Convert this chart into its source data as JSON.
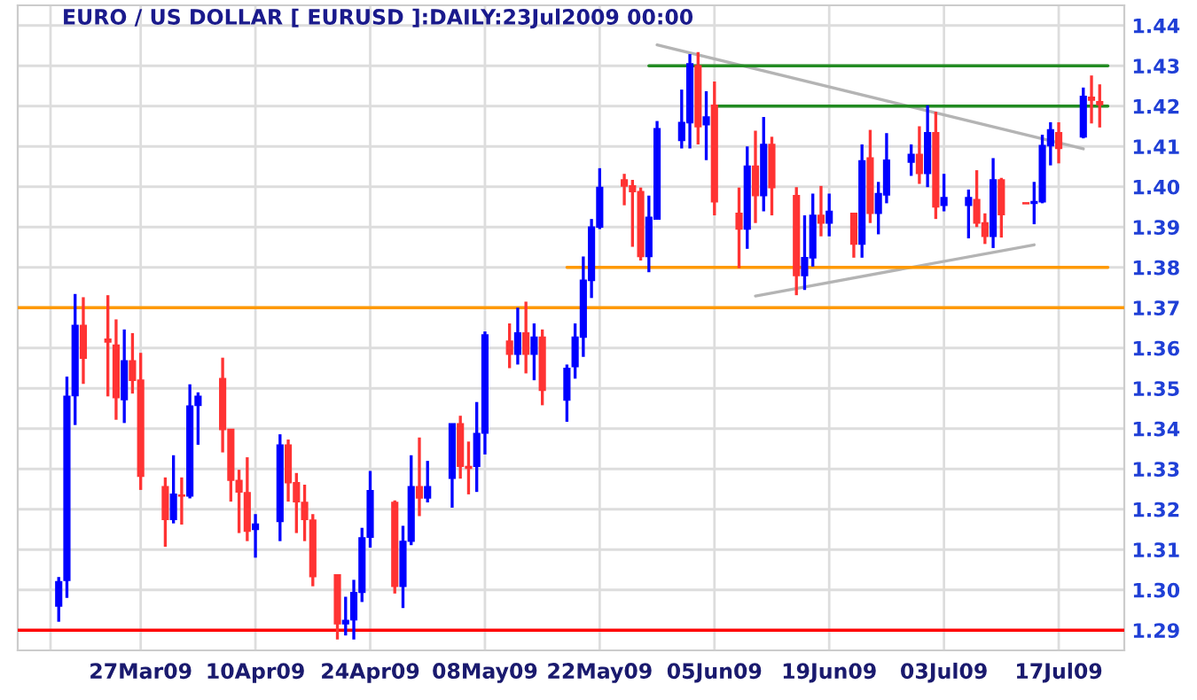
{
  "chart_data": {
    "type": "candlestick",
    "title": "EURO / US DOLLAR [ EURUSD ]:DAILY:23Jul2009 00:00",
    "x": [
      "2009-03-17",
      "2009-03-18",
      "2009-03-19",
      "2009-03-20",
      "2009-03-23",
      "2009-03-24",
      "2009-03-25",
      "2009-03-26",
      "2009-03-27",
      "2009-03-30",
      "2009-03-31",
      "2009-04-01",
      "2009-04-02",
      "2009-04-03",
      "2009-04-06",
      "2009-04-07",
      "2009-04-08",
      "2009-04-09",
      "2009-04-10",
      "2009-04-13",
      "2009-04-14",
      "2009-04-15",
      "2009-04-16",
      "2009-04-17",
      "2009-04-20",
      "2009-04-21",
      "2009-04-22",
      "2009-04-23",
      "2009-04-24",
      "2009-04-27",
      "2009-04-28",
      "2009-04-29",
      "2009-04-30",
      "2009-05-01",
      "2009-05-04",
      "2009-05-05",
      "2009-05-06",
      "2009-05-07",
      "2009-05-08",
      "2009-05-11",
      "2009-05-12",
      "2009-05-13",
      "2009-05-14",
      "2009-05-15",
      "2009-05-18",
      "2009-05-19",
      "2009-05-20",
      "2009-05-21",
      "2009-05-22",
      "2009-05-25",
      "2009-05-26",
      "2009-05-27",
      "2009-05-28",
      "2009-05-29",
      "2009-06-01",
      "2009-06-02",
      "2009-06-03",
      "2009-06-04",
      "2009-06-05",
      "2009-06-08",
      "2009-06-09",
      "2009-06-10",
      "2009-06-11",
      "2009-06-12",
      "2009-06-15",
      "2009-06-16",
      "2009-06-17",
      "2009-06-18",
      "2009-06-19",
      "2009-06-22",
      "2009-06-23",
      "2009-06-24",
      "2009-06-25",
      "2009-06-26",
      "2009-06-29",
      "2009-06-30",
      "2009-07-01",
      "2009-07-02",
      "2009-07-03",
      "2009-07-06",
      "2009-07-07",
      "2009-07-08",
      "2009-07-09",
      "2009-07-10",
      "2009-07-13",
      "2009-07-14",
      "2009-07-15",
      "2009-07-16",
      "2009-07-17",
      "2009-07-20",
      "2009-07-21",
      "2009-07-22"
    ],
    "ohlc": [
      [
        1.296,
        1.3032,
        1.2921,
        1.302
      ],
      [
        1.3024,
        1.3529,
        1.298,
        1.348
      ],
      [
        1.3482,
        1.3734,
        1.3409,
        1.3656
      ],
      [
        1.3656,
        1.3726,
        1.3511,
        1.3575
      ],
      [
        1.3622,
        1.3731,
        1.348,
        1.3615
      ],
      [
        1.3607,
        1.3671,
        1.3422,
        1.3477
      ],
      [
        1.3472,
        1.3646,
        1.3414,
        1.3568
      ],
      [
        1.3568,
        1.3637,
        1.3487,
        1.352
      ],
      [
        1.352,
        1.3588,
        1.3248,
        1.3282
      ],
      [
        1.3256,
        1.3279,
        1.3107,
        1.3175
      ],
      [
        1.3175,
        1.3334,
        1.3165,
        1.3237
      ],
      [
        1.3235,
        1.3279,
        1.3162,
        1.3233
      ],
      [
        1.3233,
        1.351,
        1.3227,
        1.3456
      ],
      [
        1.3458,
        1.349,
        1.336,
        1.348
      ],
      [
        1.3524,
        1.3576,
        1.3341,
        1.3398
      ],
      [
        1.3398,
        1.3398,
        1.3219,
        1.3272
      ],
      [
        1.3271,
        1.3298,
        1.3141,
        1.3243
      ],
      [
        1.3241,
        1.3329,
        1.3121,
        1.3146
      ],
      [
        1.315,
        1.3188,
        1.308,
        1.3163
      ],
      [
        1.317,
        1.3386,
        1.3121,
        1.3359
      ],
      [
        1.3359,
        1.3373,
        1.3219,
        1.3266
      ],
      [
        1.3266,
        1.329,
        1.3141,
        1.3219
      ],
      [
        1.3217,
        1.3261,
        1.3121,
        1.3175
      ],
      [
        1.3173,
        1.3188,
        1.3009,
        1.3033
      ],
      [
        1.3037,
        1.3037,
        1.2877,
        1.2916
      ],
      [
        1.2916,
        1.2983,
        1.2887,
        1.2924
      ],
      [
        1.2926,
        1.3025,
        1.2877,
        1.2993
      ],
      [
        1.2994,
        1.3154,
        1.297,
        1.3129
      ],
      [
        1.3131,
        1.3295,
        1.3105,
        1.3246
      ],
      [
        1.3217,
        1.3222,
        1.2991,
        1.3009
      ],
      [
        1.3009,
        1.3159,
        1.2955,
        1.312
      ],
      [
        1.3121,
        1.3334,
        1.3111,
        1.3256
      ],
      [
        1.3256,
        1.3378,
        1.3183,
        1.3228
      ],
      [
        1.3228,
        1.332,
        1.3217,
        1.3256
      ],
      [
        1.3277,
        1.3412,
        1.3204,
        1.3412
      ],
      [
        1.3412,
        1.3432,
        1.3276,
        1.3307
      ],
      [
        1.3306,
        1.3368,
        1.3237,
        1.3302
      ],
      [
        1.3307,
        1.3466,
        1.3243,
        1.3388
      ],
      [
        1.3389,
        1.3641,
        1.3336,
        1.3632
      ],
      [
        1.3617,
        1.3661,
        1.355,
        1.3585
      ],
      [
        1.3585,
        1.37,
        1.3559,
        1.3637
      ],
      [
        1.3637,
        1.3715,
        1.3537,
        1.3585
      ],
      [
        1.3585,
        1.3661,
        1.352,
        1.3627
      ],
      [
        1.3627,
        1.3646,
        1.3458,
        1.3495
      ],
      [
        1.3471,
        1.3559,
        1.3417,
        1.3549
      ],
      [
        1.3554,
        1.3661,
        1.3524,
        1.3627
      ],
      [
        1.3627,
        1.3827,
        1.3578,
        1.3768
      ],
      [
        1.3768,
        1.392,
        1.3724,
        1.39
      ],
      [
        1.39,
        1.4046,
        1.3895,
        1.3998
      ],
      [
        1.4017,
        1.4032,
        1.3954,
        1.4002
      ],
      [
        1.4002,
        1.4017,
        1.3851,
        1.3988
      ],
      [
        1.3988,
        1.3998,
        1.3817,
        1.3827
      ],
      [
        1.3827,
        1.3978,
        1.3788,
        1.3924
      ],
      [
        1.392,
        1.4163,
        1.392,
        1.4144
      ],
      [
        1.4115,
        1.4241,
        1.4095,
        1.4159
      ],
      [
        1.4159,
        1.4329,
        1.4095,
        1.4305
      ],
      [
        1.43,
        1.4334,
        1.4105,
        1.4149
      ],
      [
        1.4154,
        1.4237,
        1.4066,
        1.4173
      ],
      [
        1.4202,
        1.4261,
        1.3929,
        1.3963
      ],
      [
        1.3934,
        1.3998,
        1.3798,
        1.3895
      ],
      [
        1.3895,
        1.41,
        1.3846,
        1.4051
      ],
      [
        1.4051,
        1.4139,
        1.391,
        1.3978
      ],
      [
        1.3978,
        1.4173,
        1.3939,
        1.4105
      ],
      [
        1.4105,
        1.4124,
        1.3929,
        1.3998
      ],
      [
        1.3978,
        1.3999,
        1.3731,
        1.378
      ],
      [
        1.378,
        1.3929,
        1.3744,
        1.3824
      ],
      [
        1.3824,
        1.3983,
        1.3802,
        1.3929
      ],
      [
        1.3929,
        1.4002,
        1.3877,
        1.391
      ],
      [
        1.391,
        1.3983,
        1.3877,
        1.3939
      ],
      [
        1.3934,
        1.3934,
        1.3824,
        1.3858
      ],
      [
        1.3858,
        1.4105,
        1.3824,
        1.4064
      ],
      [
        1.4071,
        1.4141,
        1.391,
        1.3934
      ],
      [
        1.3934,
        1.4012,
        1.3882,
        1.3983
      ],
      [
        1.398,
        1.4133,
        1.3959,
        1.4066
      ],
      [
        1.4061,
        1.4105,
        1.4027,
        1.408
      ],
      [
        1.408,
        1.415,
        1.4007,
        1.4033
      ],
      [
        1.4033,
        1.4202,
        1.3999,
        1.4134
      ],
      [
        1.4134,
        1.4186,
        1.392,
        1.395
      ],
      [
        1.3954,
        1.4032,
        1.3939,
        1.3973
      ],
      [
        1.3954,
        1.3993,
        1.3872,
        1.3973
      ],
      [
        1.3968,
        1.4041,
        1.39,
        1.391
      ],
      [
        1.391,
        1.3934,
        1.3858,
        1.3877
      ],
      [
        1.3877,
        1.4071,
        1.3848,
        1.4017
      ],
      [
        1.4017,
        1.4022,
        1.3874,
        1.3931
      ],
      [
        1.396,
        1.396,
        1.3958,
        1.3958
      ],
      [
        1.3959,
        1.4012,
        1.3907,
        1.3963
      ],
      [
        1.3963,
        1.4129,
        1.3959,
        1.4102
      ],
      [
        1.4102,
        1.416,
        1.4053,
        1.4141
      ],
      [
        1.4134,
        1.416,
        1.4058,
        1.4095
      ],
      [
        1.4124,
        1.4246,
        1.412,
        1.4224
      ],
      [
        1.4222,
        1.4276,
        1.4157,
        1.4215
      ],
      [
        1.4211,
        1.4254,
        1.4147,
        1.4204
      ]
    ],
    "colors": [
      "#0000ff",
      "#0000ff",
      "#0000ff",
      "#ff3333",
      "#ff3333",
      "#ff3333",
      "#0000ff",
      "#ff3333",
      "#ff3333",
      "#ff3333",
      "#0000ff",
      "#ff3333",
      "#0000ff",
      "#0000ff",
      "#ff3333",
      "#ff3333",
      "#ff3333",
      "#ff3333",
      "#0000ff",
      "#0000ff",
      "#ff3333",
      "#ff3333",
      "#ff3333",
      "#ff3333",
      "#ff3333",
      "#0000ff",
      "#0000ff",
      "#0000ff",
      "#0000ff",
      "#ff3333",
      "#0000ff",
      "#0000ff",
      "#ff3333",
      "#0000ff",
      "#0000ff",
      "#ff3333",
      "#ff3333",
      "#0000ff",
      "#0000ff",
      "#ff3333",
      "#0000ff",
      "#ff3333",
      "#0000ff",
      "#ff3333",
      "#0000ff",
      "#0000ff",
      "#0000ff",
      "#0000ff",
      "#0000ff",
      "#ff3333",
      "#ff3333",
      "#ff3333",
      "#0000ff",
      "#0000ff",
      "#0000ff",
      "#0000ff",
      "#ff3333",
      "#0000ff",
      "#ff3333",
      "#ff3333",
      "#0000ff",
      "#ff3333",
      "#0000ff",
      "#ff3333",
      "#ff3333",
      "#0000ff",
      "#0000ff",
      "#ff3333",
      "#0000ff",
      "#ff3333",
      "#0000ff",
      "#ff3333",
      "#0000ff",
      "#0000ff",
      "#0000ff",
      "#ff3333",
      "#0000ff",
      "#ff3333",
      "#0000ff",
      "#0000ff",
      "#ff3333",
      "#ff3333",
      "#0000ff",
      "#ff3333",
      "#ff3333",
      "#0000ff",
      "#0000ff",
      "#0000ff",
      "#ff3333",
      "#0000ff",
      "#ff3333",
      "#ff3333"
    ],
    "series": [
      {
        "type": "line",
        "color": "#b4b4b4",
        "x": [
          "2009-05-29",
          "2009-07-20"
        ],
        "values": [
          1.4352,
          1.4094
        ]
      },
      {
        "type": "line",
        "color": "#b4b4b4",
        "x": [
          "2009-06-10",
          "2009-07-14"
        ],
        "values": [
          1.3729,
          1.3856
        ]
      },
      {
        "type": "line",
        "color": "#228b22",
        "x": [
          "2009-05-28",
          "2009-07-23"
        ],
        "values": [
          1.43,
          1.43
        ]
      },
      {
        "type": "line",
        "color": "#228b22",
        "x": [
          "2009-06-05",
          "2009-07-23"
        ],
        "values": [
          1.42,
          1.42
        ]
      },
      {
        "type": "line",
        "color": "#ff9900",
        "x": [
          "2009-05-18",
          "2009-07-23"
        ],
        "values": [
          1.38,
          1.38
        ]
      }
    ],
    "ref_lines": [
      {
        "axis": "y",
        "value": 1.37,
        "color": "#ff9900"
      },
      {
        "axis": "y",
        "value": 1.29,
        "color": "#ff0000"
      }
    ],
    "xlim": [
      "2009-03-12",
      "2009-07-25"
    ],
    "xticks": [
      {
        "value": "2009-03-16",
        "label": null
      },
      {
        "value": "2009-03-27",
        "label": "27Mar09"
      },
      {
        "value": "2009-04-10",
        "label": "10Apr09"
      },
      {
        "value": "2009-04-24",
        "label": "24Apr09"
      },
      {
        "value": "2009-05-08",
        "label": "08May09"
      },
      {
        "value": "2009-05-22",
        "label": "22May09"
      },
      {
        "value": "2009-06-05",
        "label": "05Jun09"
      },
      {
        "value": "2009-06-19",
        "label": "19Jun09"
      },
      {
        "value": "2009-07-03",
        "label": "03Jul09"
      },
      {
        "value": "2009-07-17",
        "label": "17Jul09"
      }
    ],
    "ylim": [
      1.285,
      1.445
    ],
    "yticks": [
      1.29,
      {
        "value": 1.3,
        "label": "1.30"
      },
      1.31,
      1.32,
      1.33,
      1.34,
      1.35,
      1.36,
      1.37,
      1.38,
      1.39,
      {
        "value": 1.4,
        "label": "1.40"
      },
      1.41,
      1.42,
      1.43,
      1.44
    ],
    "grid": true
  }
}
